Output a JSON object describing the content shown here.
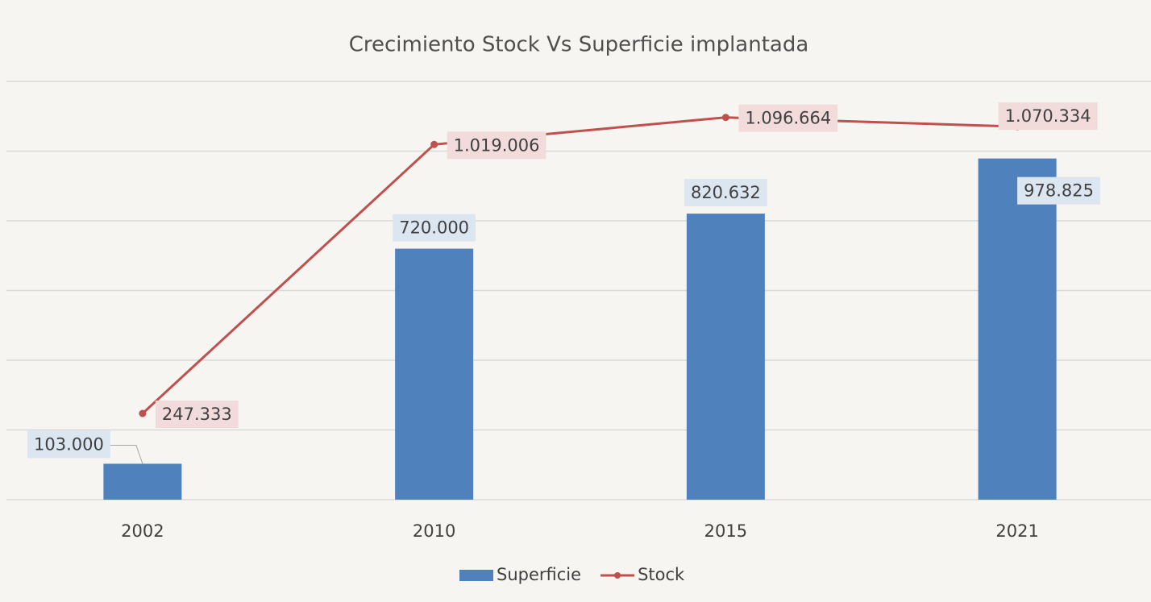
{
  "chart_data": {
    "type": "bar_line",
    "title": "Crecimiento Stock Vs Superficie implantada",
    "categories": [
      "2002",
      "2010",
      "2015",
      "2021"
    ],
    "series": [
      {
        "name": "Superficie",
        "type": "bar",
        "color": "#4f81bd",
        "values": [
          103000,
          720000,
          820632,
          978825
        ],
        "value_labels": [
          "103.000",
          "720.000",
          "820.632",
          "978.825"
        ]
      },
      {
        "name": "Stock",
        "type": "line",
        "color": "#c0504d",
        "values": [
          247333,
          1019006,
          1096664,
          1070334
        ],
        "value_labels": [
          "247.333",
          "1.019.006",
          "1.096.664",
          "1.070.334"
        ]
      }
    ],
    "ylim": [
      0,
      1200000
    ],
    "yticks": [
      0,
      200000,
      400000,
      600000,
      800000,
      1000000,
      1200000
    ],
    "grid": true,
    "legend": "bottom"
  }
}
